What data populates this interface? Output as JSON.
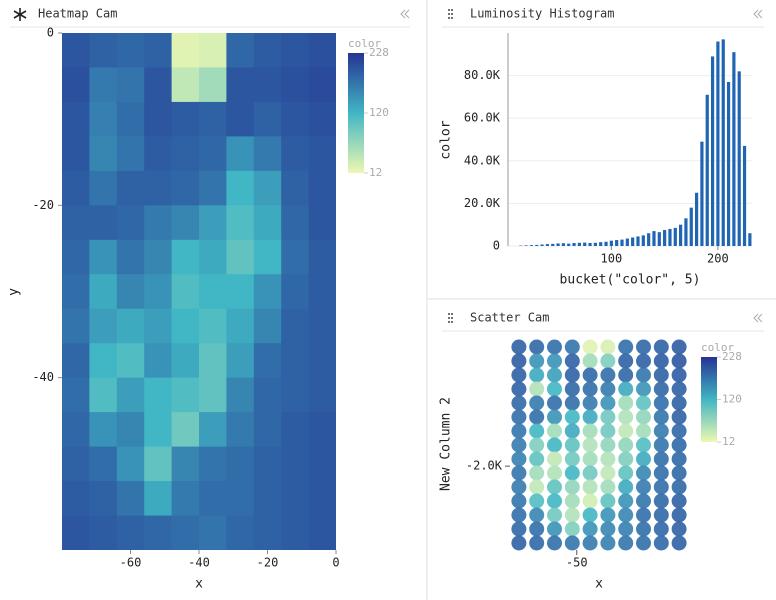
{
  "chart_data": [
    {
      "type": "heatmap",
      "title": "Heatmap Cam",
      "xlabel": "x",
      "ylabel": "y",
      "x": [
        -76,
        -68,
        -60,
        -52,
        -44,
        -36,
        -28,
        -20,
        -12,
        -4
      ],
      "y": [
        -2,
        -6,
        -10,
        -14,
        -18,
        -22,
        -26,
        -30,
        -34,
        -38,
        -42,
        -46,
        -50,
        -54,
        -58
      ],
      "values": [
        [
          200,
          190,
          185,
          190,
          20,
          25,
          185,
          195,
          200,
          205
        ],
        [
          205,
          170,
          175,
          200,
          40,
          60,
          200,
          200,
          205,
          210
        ],
        [
          200,
          165,
          180,
          200,
          195,
          190,
          200,
          190,
          200,
          205
        ],
        [
          200,
          160,
          175,
          195,
          190,
          185,
          150,
          170,
          195,
          200
        ],
        [
          195,
          175,
          190,
          190,
          185,
          175,
          120,
          140,
          190,
          200
        ],
        [
          190,
          190,
          185,
          170,
          160,
          140,
          110,
          130,
          185,
          200
        ],
        [
          185,
          150,
          175,
          160,
          120,
          130,
          100,
          120,
          180,
          195
        ],
        [
          180,
          130,
          160,
          150,
          110,
          120,
          120,
          150,
          185,
          195
        ],
        [
          175,
          140,
          130,
          140,
          120,
          110,
          130,
          160,
          190,
          195
        ],
        [
          185,
          120,
          110,
          150,
          130,
          100,
          140,
          180,
          190,
          195
        ],
        [
          180,
          110,
          140,
          120,
          110,
          100,
          160,
          185,
          190,
          195
        ],
        [
          185,
          150,
          160,
          120,
          90,
          140,
          170,
          185,
          195,
          200
        ],
        [
          190,
          180,
          150,
          100,
          160,
          175,
          180,
          190,
          195,
          200
        ],
        [
          195,
          190,
          175,
          130,
          170,
          180,
          180,
          190,
          195,
          200
        ],
        [
          200,
          195,
          190,
          185,
          180,
          175,
          185,
          190,
          195,
          200
        ]
      ],
      "xlim": [
        -80,
        0
      ],
      "xticks": [
        -60,
        -40,
        -20,
        0
      ],
      "ylim": [
        -60,
        0
      ],
      "yticks": [
        0,
        -20,
        -40
      ],
      "colorbar": {
        "title": "color",
        "ticks": [
          228,
          120,
          12
        ],
        "clim": [
          12,
          228
        ],
        "colors": [
          "#edf8b1",
          "#41b6c4",
          "#253494"
        ]
      }
    },
    {
      "type": "bar",
      "title": "Luminosity Histogram",
      "xlabel": "bucket(\"color\", 5)",
      "ylabel": "color",
      "color": "#1f65b4",
      "x": [
        15,
        20,
        25,
        30,
        35,
        40,
        45,
        50,
        55,
        60,
        65,
        70,
        75,
        80,
        85,
        90,
        95,
        100,
        105,
        110,
        115,
        120,
        125,
        130,
        135,
        140,
        145,
        150,
        155,
        160,
        165,
        170,
        175,
        180,
        185,
        190,
        195,
        200,
        205,
        210,
        215,
        220,
        225,
        230
      ],
      "values": [
        200,
        300,
        400,
        500,
        700,
        900,
        1000,
        1200,
        1300,
        1100,
        1400,
        1500,
        1600,
        1400,
        1500,
        1800,
        2000,
        2500,
        2800,
        3000,
        3500,
        4000,
        4500,
        5000,
        6000,
        7000,
        6500,
        7500,
        8000,
        8500,
        10000,
        13000,
        18000,
        25000,
        49000,
        71000,
        89000,
        96000,
        97000,
        77000,
        91000,
        82000,
        47000,
        6000
      ],
      "xlim": [
        3,
        232
      ],
      "xticks": [
        100,
        200
      ],
      "ylim": [
        0,
        100000
      ],
      "yticks": [
        0,
        {
          "value": 20000,
          "label": "20.0K"
        },
        {
          "value": 40000,
          "label": "40.0K"
        },
        {
          "value": 60000,
          "label": "60.0K"
        },
        {
          "value": 80000,
          "label": "80.0K"
        }
      ],
      "grid": true
    },
    {
      "type": "scatter",
      "title": "Scatter Cam",
      "xlabel": "x",
      "ylabel": "New Column 2",
      "x": [
        -76,
        -68,
        -60,
        -52,
        -44,
        -36,
        -28,
        -20,
        -12,
        -4
      ],
      "y": [
        -111,
        -333,
        -555,
        -777,
        -999,
        -1221,
        -1443,
        -1665,
        -1887,
        -2109,
        -2331,
        -2553,
        -2775,
        -2997,
        -3219
      ],
      "values": [
        [
          190,
          185,
          180,
          175,
          20,
          25,
          180,
          185,
          190,
          195
        ],
        [
          195,
          150,
          150,
          190,
          60,
          80,
          190,
          190,
          195,
          200
        ],
        [
          190,
          130,
          140,
          190,
          185,
          180,
          185,
          175,
          190,
          195
        ],
        [
          190,
          50,
          120,
          185,
          180,
          170,
          130,
          150,
          185,
          190
        ],
        [
          185,
          170,
          180,
          180,
          170,
          150,
          60,
          100,
          180,
          190
        ],
        [
          180,
          180,
          150,
          120,
          130,
          90,
          50,
          70,
          175,
          190
        ],
        [
          175,
          120,
          60,
          130,
          60,
          90,
          40,
          60,
          170,
          185
        ],
        [
          170,
          80,
          120,
          100,
          50,
          70,
          70,
          110,
          175,
          185
        ],
        [
          165,
          100,
          40,
          90,
          60,
          50,
          80,
          130,
          180,
          185
        ],
        [
          175,
          60,
          50,
          120,
          90,
          40,
          100,
          160,
          180,
          185
        ],
        [
          170,
          40,
          100,
          70,
          50,
          60,
          130,
          170,
          180,
          185
        ],
        [
          175,
          110,
          120,
          60,
          30,
          100,
          150,
          175,
          185,
          190
        ],
        [
          180,
          160,
          90,
          50,
          120,
          150,
          160,
          180,
          185,
          190
        ],
        [
          185,
          180,
          150,
          80,
          150,
          160,
          165,
          180,
          185,
          190
        ],
        [
          190,
          185,
          180,
          175,
          170,
          165,
          175,
          180,
          185,
          190
        ]
      ],
      "xlim": [
        -80,
        0
      ],
      "xticks": [
        -50
      ],
      "ylim": [
        -3330,
        0
      ],
      "yticks": [
        {
          "value": -2000,
          "label": "-2.0K"
        }
      ],
      "colorbar": {
        "title": "color",
        "ticks": [
          228,
          120,
          12
        ],
        "clim": [
          12,
          228
        ],
        "colors": [
          "#edf8b1",
          "#41b6c4",
          "#253494"
        ]
      }
    }
  ]
}
